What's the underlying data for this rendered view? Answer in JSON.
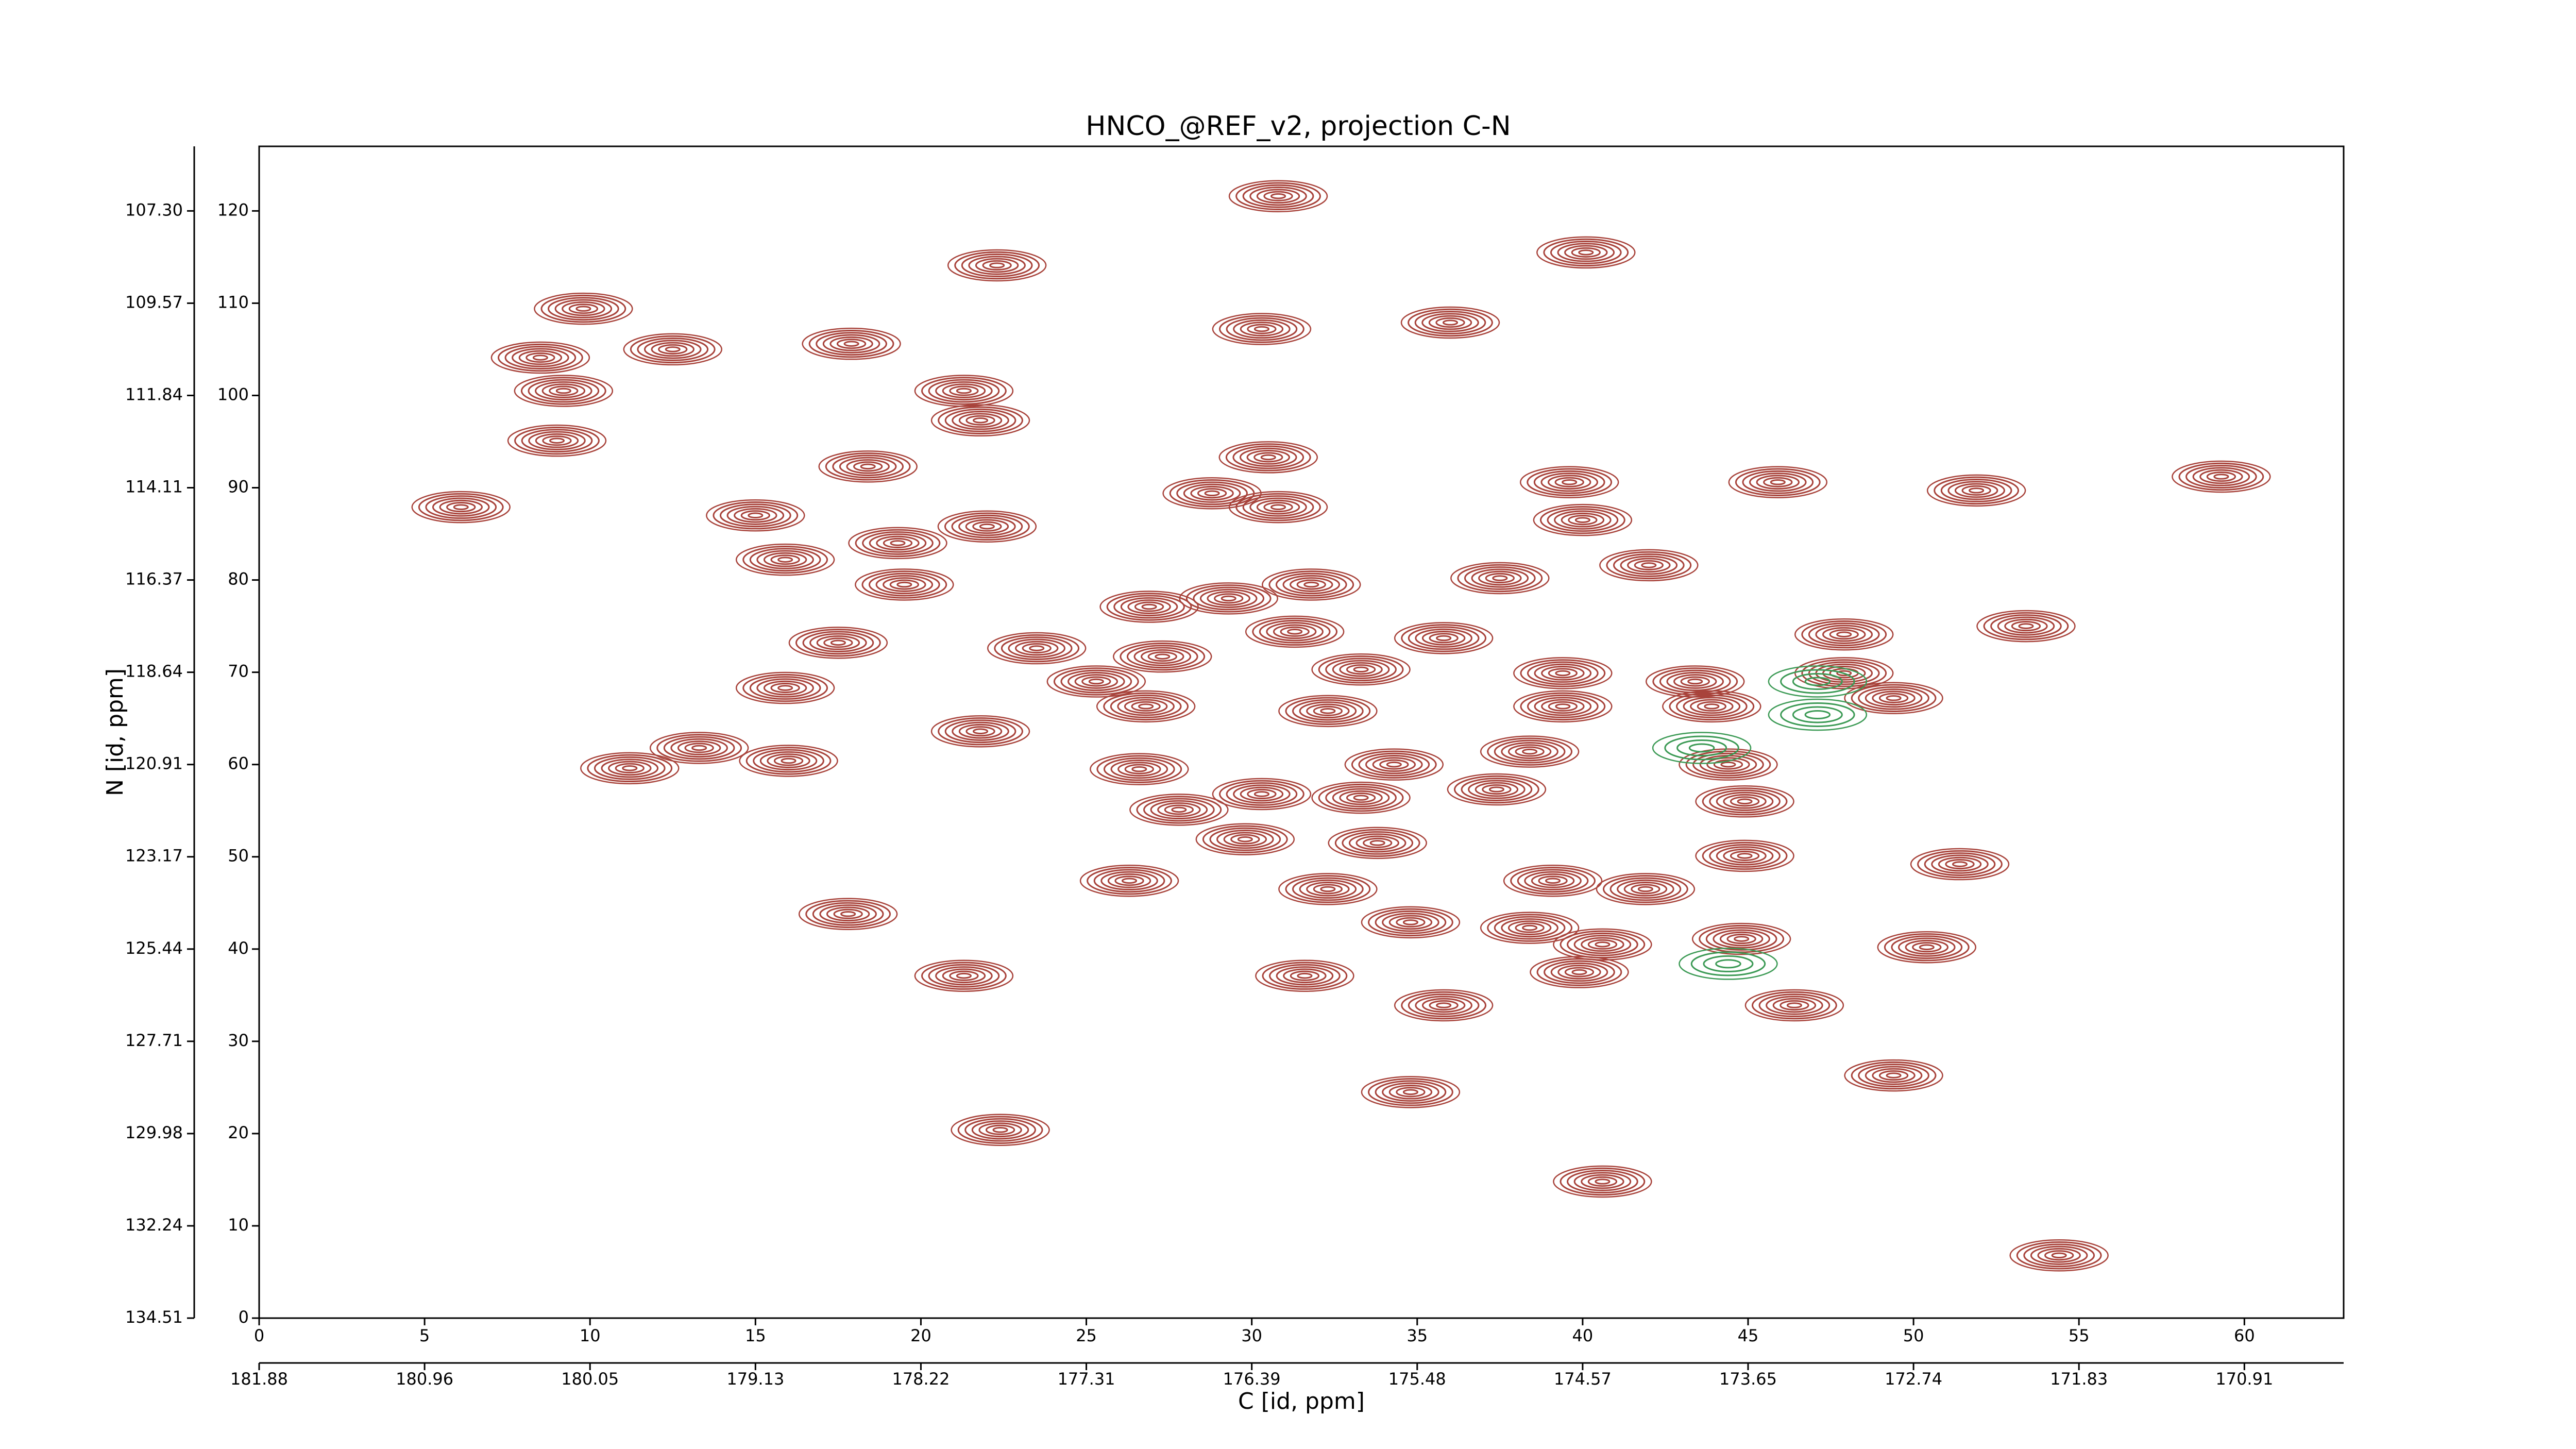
{
  "chart_data": {
    "type": "contour",
    "title": "HNCO_@REF_v2, projection C-N",
    "x_label": "C [id, ppm]",
    "y_label": "N [id, ppm]",
    "xlim": [
      0,
      63
    ],
    "ylim": [
      0,
      127
    ],
    "xticks": [
      0,
      5,
      10,
      15,
      20,
      25,
      30,
      35,
      40,
      45,
      50,
      55,
      60
    ],
    "yticks": [
      0,
      10,
      20,
      30,
      40,
      50,
      60,
      70,
      80,
      90,
      100,
      110,
      120
    ],
    "x2ticks": [
      {
        "value": 0,
        "label": "181.88"
      },
      {
        "value": 5,
        "label": "180.96"
      },
      {
        "value": 10,
        "label": "180.05"
      },
      {
        "value": 15,
        "label": "179.13"
      },
      {
        "value": 20,
        "label": "178.22"
      },
      {
        "value": 25,
        "label": "177.31"
      },
      {
        "value": 30,
        "label": "176.39"
      },
      {
        "value": 35,
        "label": "175.48"
      },
      {
        "value": 40,
        "label": "174.57"
      },
      {
        "value": 45,
        "label": "173.65"
      },
      {
        "value": 50,
        "label": "172.74"
      },
      {
        "value": 55,
        "label": "171.83"
      },
      {
        "value": 60,
        "label": "170.91"
      }
    ],
    "y2ticks": [
      {
        "value": 0,
        "label": "134.51"
      },
      {
        "value": 10,
        "label": "132.24"
      },
      {
        "value": 20,
        "label": "129.98"
      },
      {
        "value": 30,
        "label": "127.71"
      },
      {
        "value": 40,
        "label": "125.44"
      },
      {
        "value": 50,
        "label": "123.17"
      },
      {
        "value": 60,
        "label": "120.91"
      },
      {
        "value": 70,
        "label": "118.64"
      },
      {
        "value": 80,
        "label": "116.37"
      },
      {
        "value": 90,
        "label": "114.11"
      },
      {
        "value": 100,
        "label": "111.84"
      },
      {
        "value": 110,
        "label": "109.57"
      },
      {
        "value": 120,
        "label": "107.30"
      }
    ],
    "series": [
      {
        "color": "#a8433b",
        "x": [
          30.8,
          40.1,
          22.3,
          30.3,
          36.0,
          9.8,
          12.5,
          8.5,
          9.2,
          17.9,
          21.3,
          21.8,
          9.0,
          18.4,
          30.5,
          28.8,
          30.8,
          6.1,
          15.0,
          39.6,
          45.9,
          51.9,
          59.3,
          40.0,
          22.0,
          19.3,
          15.9,
          42.0,
          37.5,
          19.5,
          31.8,
          26.9,
          29.3,
          17.5,
          31.3,
          35.8,
          47.9,
          53.4,
          23.5,
          27.3,
          33.3,
          15.9,
          39.4,
          43.4,
          47.9,
          25.3,
          39.4,
          49.4,
          43.9,
          26.8,
          32.3,
          21.8,
          13.3,
          11.2,
          16.0,
          38.4,
          34.3,
          26.6,
          44.4,
          30.3,
          33.3,
          27.8,
          37.4,
          44.9,
          29.8,
          33.8,
          44.9,
          51.4,
          26.3,
          32.3,
          39.1,
          41.9,
          17.8,
          34.8,
          38.4,
          44.8,
          50.4,
          40.6,
          21.3,
          31.6,
          39.9,
          35.8,
          46.4,
          49.4,
          34.8,
          22.4,
          40.6,
          54.4
        ],
        "values": [
          121.6,
          115.5,
          114.1,
          107.2,
          107.9,
          109.4,
          105.0,
          104.1,
          100.5,
          105.6,
          100.5,
          97.3,
          95.1,
          92.3,
          93.3,
          89.4,
          87.9,
          87.9,
          87.0,
          90.6,
          90.6,
          89.7,
          91.2,
          86.5,
          85.8,
          84.0,
          82.2,
          81.6,
          80.2,
          79.5,
          79.5,
          77.1,
          78.0,
          73.2,
          74.4,
          73.7,
          74.1,
          75.0,
          72.6,
          71.7,
          70.3,
          68.3,
          69.9,
          69.0,
          69.9,
          69.0,
          66.3,
          67.2,
          66.3,
          66.3,
          65.8,
          63.6,
          61.8,
          59.6,
          60.4,
          61.4,
          60.0,
          59.5,
          60.0,
          56.8,
          56.4,
          55.1,
          57.3,
          56.0,
          51.9,
          51.5,
          50.1,
          49.2,
          47.4,
          46.5,
          47.4,
          46.5,
          43.8,
          42.9,
          42.3,
          41.1,
          40.2,
          40.5,
          37.1,
          37.1,
          37.5,
          33.9,
          33.9,
          26.3,
          24.5,
          20.4,
          14.8,
          6.8
        ]
      },
      {
        "color": "#3c9a55",
        "x": [
          47.1,
          43.6,
          44.4,
          47.1
        ],
        "values": [
          65.4,
          61.8,
          38.4,
          69.0
        ]
      }
    ]
  }
}
